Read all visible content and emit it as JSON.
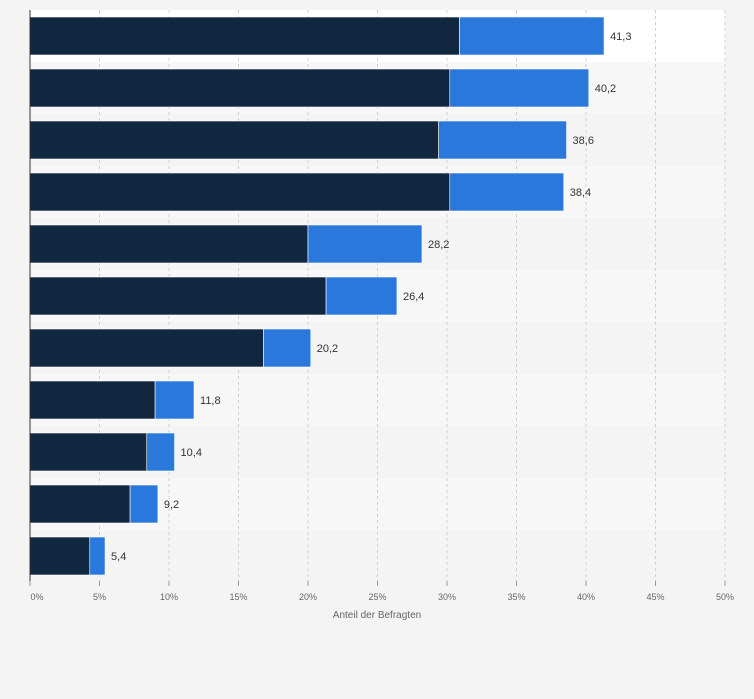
{
  "chart_data": {
    "type": "bar",
    "orientation": "horizontal",
    "stacked": true,
    "xlabel": "Anteil der Befragten",
    "xlim": [
      0,
      50
    ],
    "x_ticks": [
      "0%",
      "5%",
      "10%",
      "15%",
      "20%",
      "25%",
      "30%",
      "35%",
      "40%",
      "45%",
      "50%"
    ],
    "grid": true,
    "legend": "none",
    "totals": [
      41.3,
      40.2,
      38.6,
      38.4,
      28.2,
      26.4,
      20.2,
      11.8,
      10.4,
      9.2,
      5.4
    ],
    "total_labels": [
      "41,3",
      "40,2",
      "38,6",
      "38,4",
      "28,2",
      "26,4",
      "20,2",
      "11,8",
      "10,4",
      "9,2",
      "5,4"
    ],
    "series": [
      {
        "values": [
          30.9,
          30.2,
          29.4,
          30.2,
          20.0,
          21.3,
          16.8,
          9.0,
          8.4,
          7.2,
          4.3
        ]
      },
      {
        "values": [
          10.4,
          10.0,
          9.2,
          8.2,
          8.2,
          5.1,
          3.4,
          2.8,
          2.0,
          2.0,
          1.1
        ]
      }
    ],
    "colors": [
      "#10273f",
      "#2b78dc"
    ],
    "band_colors": [
      "#ffffff",
      "#f7f7f7",
      "#f4f4f4"
    ]
  }
}
